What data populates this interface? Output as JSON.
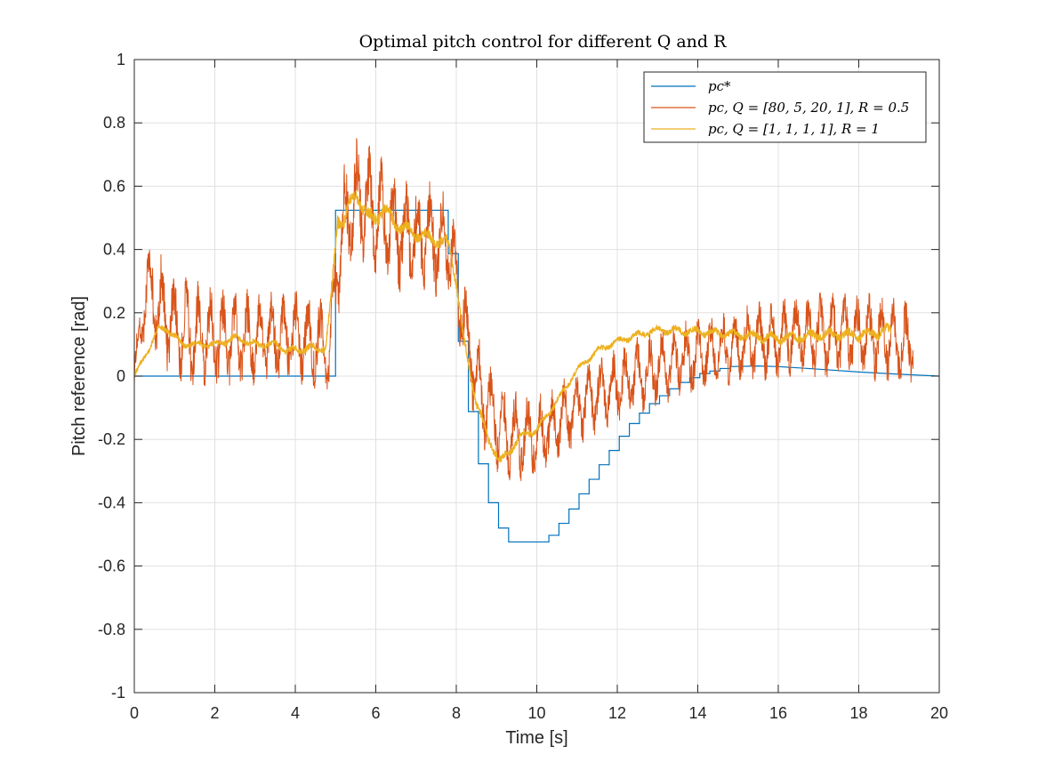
{
  "chart_data": {
    "type": "line",
    "title": "Optimal pitch control for different Q and R",
    "xlabel": "Time [s]",
    "ylabel": "Pitch reference [rad]",
    "xlim": [
      0,
      20
    ],
    "ylim": [
      -1,
      1
    ],
    "xticks": [
      "0",
      "2",
      "4",
      "6",
      "8",
      "10",
      "12",
      "14",
      "16",
      "18",
      "20"
    ],
    "yticks": [
      "-1",
      "-0.8",
      "-0.6",
      "-0.4",
      "-0.2",
      "0",
      "0.2",
      "0.4",
      "0.6",
      "0.8",
      "1"
    ],
    "grid": true,
    "legend_position": "top-right",
    "series": [
      {
        "name": "p_c^*",
        "legend_label": "pc*",
        "color": "#0072BD",
        "style": "step",
        "points": [
          [
            0,
            0
          ],
          [
            5.0,
            0
          ],
          [
            5.0,
            0.524
          ],
          [
            7.8,
            0.524
          ],
          [
            7.8,
            0.387
          ],
          [
            8.05,
            0.387
          ],
          [
            8.05,
            0.11
          ],
          [
            8.3,
            0.11
          ],
          [
            8.3,
            -0.112
          ],
          [
            8.55,
            -0.112
          ],
          [
            8.55,
            -0.277
          ],
          [
            8.8,
            -0.277
          ],
          [
            8.8,
            -0.4
          ],
          [
            9.05,
            -0.4
          ],
          [
            9.05,
            -0.48
          ],
          [
            9.3,
            -0.48
          ],
          [
            9.3,
            -0.524
          ],
          [
            10.3,
            -0.524
          ],
          [
            10.3,
            -0.503
          ],
          [
            10.55,
            -0.503
          ],
          [
            10.55,
            -0.465
          ],
          [
            10.8,
            -0.465
          ],
          [
            10.8,
            -0.42
          ],
          [
            11.05,
            -0.42
          ],
          [
            11.05,
            -0.372
          ],
          [
            11.3,
            -0.372
          ],
          [
            11.3,
            -0.326
          ],
          [
            11.55,
            -0.326
          ],
          [
            11.55,
            -0.28
          ],
          [
            11.8,
            -0.28
          ],
          [
            11.8,
            -0.235
          ],
          [
            12.05,
            -0.235
          ],
          [
            12.05,
            -0.19
          ],
          [
            12.3,
            -0.19
          ],
          [
            12.3,
            -0.15
          ],
          [
            12.55,
            -0.15
          ],
          [
            12.55,
            -0.117
          ],
          [
            12.8,
            -0.117
          ],
          [
            12.8,
            -0.087
          ],
          [
            13.05,
            -0.087
          ],
          [
            13.05,
            -0.062
          ],
          [
            13.3,
            -0.062
          ],
          [
            13.3,
            -0.04
          ],
          [
            13.55,
            -0.04
          ],
          [
            13.55,
            -0.02
          ],
          [
            13.8,
            -0.02
          ],
          [
            13.8,
            -0.005
          ],
          [
            14.05,
            -0.005
          ],
          [
            14.05,
            0.008
          ],
          [
            14.3,
            0.008
          ],
          [
            14.3,
            0.016
          ],
          [
            14.55,
            0.016
          ],
          [
            14.55,
            0.024
          ],
          [
            14.8,
            0.024
          ],
          [
            14.8,
            0.03
          ],
          [
            15.5,
            0.032
          ],
          [
            16.0,
            0.03
          ],
          [
            17.0,
            0.022
          ],
          [
            18.0,
            0.013
          ],
          [
            19.0,
            0.006
          ],
          [
            20.0,
            0.0
          ]
        ]
      },
      {
        "name": "p_c, Q = [80, 5, 20, 1], R = 0.5",
        "legend_label": "pc, Q = [80, 5, 20, 1], R = 0.5",
        "color": "#D95319",
        "style": "noisy",
        "trend": [
          [
            0,
            0.0
          ],
          [
            0.2,
            0.2
          ],
          [
            0.35,
            0.3
          ],
          [
            0.6,
            0.22
          ],
          [
            1.0,
            0.15
          ],
          [
            2.0,
            0.12
          ],
          [
            3.0,
            0.12
          ],
          [
            4.0,
            0.12
          ],
          [
            4.7,
            0.1
          ],
          [
            4.85,
            0.05
          ],
          [
            5.0,
            0.3
          ],
          [
            5.2,
            0.48
          ],
          [
            5.5,
            0.56
          ],
          [
            6.0,
            0.52
          ],
          [
            6.5,
            0.46
          ],
          [
            7.0,
            0.44
          ],
          [
            7.5,
            0.43
          ],
          [
            7.8,
            0.42
          ],
          [
            8.0,
            0.3
          ],
          [
            8.3,
            0.1
          ],
          [
            8.6,
            -0.05
          ],
          [
            9.0,
            -0.15
          ],
          [
            9.3,
            -0.18
          ],
          [
            9.7,
            -0.2
          ],
          [
            10.2,
            -0.18
          ],
          [
            10.8,
            -0.12
          ],
          [
            11.5,
            -0.06
          ],
          [
            12.5,
            0.0
          ],
          [
            13.5,
            0.05
          ],
          [
            14.5,
            0.08
          ],
          [
            15.5,
            0.11
          ],
          [
            16.5,
            0.13
          ],
          [
            17.5,
            0.13
          ],
          [
            18.5,
            0.12
          ],
          [
            19.35,
            0.1
          ]
        ],
        "amplitude": [
          [
            0,
            0.04
          ],
          [
            0.5,
            0.12
          ],
          [
            3.0,
            0.1
          ],
          [
            4.8,
            0.1
          ],
          [
            5.5,
            0.14
          ],
          [
            7.5,
            0.12
          ],
          [
            9.0,
            0.1
          ],
          [
            10.5,
            0.08
          ],
          [
            13.0,
            0.08
          ],
          [
            15.0,
            0.08
          ],
          [
            17.0,
            0.09
          ],
          [
            19.35,
            0.09
          ]
        ]
      },
      {
        "name": "p_c, Q = [1, 1, 1, 1], R = 1",
        "legend_label": "pc, Q = [1, 1, 1, 1], R = 1",
        "color": "#EDB120",
        "style": "noisy",
        "trend": [
          [
            0,
            0.0
          ],
          [
            0.3,
            0.07
          ],
          [
            0.6,
            0.15
          ],
          [
            0.8,
            0.15
          ],
          [
            1.2,
            0.1
          ],
          [
            2.0,
            0.1
          ],
          [
            2.5,
            0.12
          ],
          [
            3.0,
            0.1
          ],
          [
            3.5,
            0.1
          ],
          [
            3.8,
            0.08
          ],
          [
            4.5,
            0.09
          ],
          [
            4.75,
            0.09
          ],
          [
            4.9,
            0.25
          ],
          [
            5.05,
            0.5
          ],
          [
            5.2,
            0.49
          ],
          [
            5.5,
            0.58
          ],
          [
            5.8,
            0.5
          ],
          [
            6.0,
            0.5
          ],
          [
            6.2,
            0.53
          ],
          [
            6.5,
            0.48
          ],
          [
            7.0,
            0.45
          ],
          [
            7.5,
            0.43
          ],
          [
            7.8,
            0.42
          ],
          [
            8.0,
            0.3
          ],
          [
            8.2,
            0.1
          ],
          [
            8.5,
            -0.08
          ],
          [
            8.8,
            -0.2
          ],
          [
            9.1,
            -0.27
          ],
          [
            9.3,
            -0.24
          ],
          [
            9.6,
            -0.19
          ],
          [
            10.0,
            -0.17
          ],
          [
            10.5,
            -0.08
          ],
          [
            11.0,
            0.02
          ],
          [
            11.5,
            0.08
          ],
          [
            12.0,
            0.11
          ],
          [
            12.5,
            0.13
          ],
          [
            13.0,
            0.145
          ],
          [
            14.0,
            0.14
          ],
          [
            15.0,
            0.13
          ],
          [
            16.0,
            0.12
          ],
          [
            17.0,
            0.13
          ],
          [
            18.0,
            0.13
          ],
          [
            18.8,
            0.145
          ]
        ],
        "amplitude": [
          [
            0,
            0.01
          ],
          [
            4.75,
            0.015
          ],
          [
            5.0,
            0.03
          ],
          [
            8.0,
            0.02
          ],
          [
            9.0,
            0.015
          ],
          [
            11.0,
            0.01
          ],
          [
            14.0,
            0.015
          ],
          [
            18.8,
            0.02
          ]
        ]
      }
    ]
  }
}
